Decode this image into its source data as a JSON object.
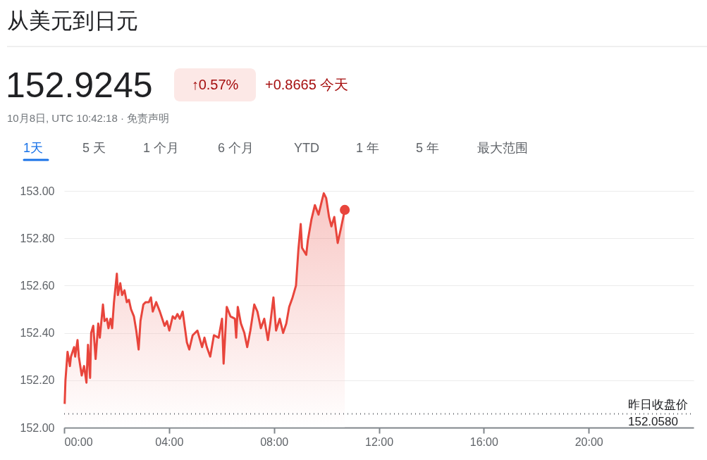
{
  "chart_data": {
    "type": "area",
    "title": "从美元到日元",
    "subtitle": "152.9245",
    "annotations": [
      "↑0.57%",
      "+0.8665 今天",
      "10月8日, UTC 10:42:18 · 免责声明",
      "1天",
      "5 天",
      "1 个月",
      "6 个月",
      "YTD",
      "1 年",
      "5 年",
      "最大范围"
    ],
    "x": [
      0.02,
      0.05,
      0.13,
      0.22,
      0.26,
      0.38,
      0.42,
      0.51,
      0.56,
      0.67,
      0.76,
      0.85,
      0.91,
      0.99,
      1.03,
      1.11,
      1.2,
      1.3,
      1.36,
      1.48,
      1.54,
      1.63,
      1.69,
      1.77,
      1.83,
      1.9,
      2.01,
      2.05,
      2.14,
      2.21,
      2.3,
      2.39,
      2.47,
      2.55,
      2.66,
      2.75,
      2.84,
      2.91,
      3.02,
      3.11,
      3.23,
      3.31,
      3.38,
      3.51,
      3.65,
      3.83,
      3.92,
      4.01,
      4.14,
      4.23,
      4.32,
      4.41,
      4.52,
      4.68,
      4.77,
      4.9,
      5.08,
      5.26,
      5.35,
      5.44,
      5.57,
      5.71,
      5.89,
      6.02,
      6.08,
      6.2,
      6.34,
      6.51,
      6.56,
      6.62,
      6.74,
      6.87,
      6.98,
      7.1,
      7.25,
      7.37,
      7.5,
      7.63,
      7.77,
      7.86,
      7.98,
      8.08,
      8.22,
      8.35,
      8.47,
      8.58,
      8.71,
      8.84,
      8.93,
      9.02,
      9.07,
      9.23,
      9.29,
      9.43,
      9.56,
      9.7,
      9.83,
      9.9,
      9.99,
      10.1,
      10.19,
      10.3,
      10.43,
      10.55,
      10.7
    ],
    "series": [
      {
        "color": "#e8453c",
        "values": [
          152.1,
          152.2,
          152.32,
          152.26,
          152.3,
          152.34,
          152.3,
          152.37,
          152.3,
          152.22,
          152.26,
          152.19,
          152.35,
          152.21,
          152.4,
          152.43,
          152.29,
          152.44,
          152.38,
          152.52,
          152.45,
          152.46,
          152.42,
          152.46,
          152.42,
          152.53,
          152.65,
          152.56,
          152.61,
          152.56,
          152.58,
          152.53,
          152.54,
          152.5,
          152.47,
          152.41,
          152.33,
          152.45,
          152.52,
          152.53,
          152.53,
          152.55,
          152.49,
          152.53,
          152.49,
          152.43,
          152.45,
          152.41,
          152.47,
          152.46,
          152.48,
          152.46,
          152.49,
          152.36,
          152.33,
          152.39,
          152.41,
          152.34,
          152.38,
          152.34,
          152.3,
          152.39,
          152.38,
          152.46,
          152.27,
          152.51,
          152.47,
          152.46,
          152.38,
          152.51,
          152.44,
          152.4,
          152.34,
          152.41,
          152.52,
          152.49,
          152.42,
          152.46,
          152.37,
          152.44,
          152.55,
          152.41,
          152.46,
          152.4,
          152.44,
          152.51,
          152.55,
          152.6,
          152.75,
          152.86,
          152.76,
          152.73,
          152.79,
          152.88,
          152.94,
          152.9,
          152.96,
          152.99,
          152.97,
          152.89,
          152.85,
          152.89,
          152.78,
          152.84,
          152.92
        ]
      }
    ],
    "xlim": [
      0,
      24
    ],
    "xticks": [
      {
        "value": 0,
        "label": "00:00"
      },
      {
        "value": 4,
        "label": "04:00"
      },
      {
        "value": 8,
        "label": "08:00"
      },
      {
        "value": 12,
        "label": "12:00"
      },
      {
        "value": 16,
        "label": "16:00"
      },
      {
        "value": 20,
        "label": "20:00"
      }
    ],
    "ylim": [
      152.0,
      153.0
    ],
    "yticks": [
      {
        "value": 152.0,
        "label": "152.00"
      },
      {
        "value": 152.2,
        "label": "152.20"
      },
      {
        "value": 152.4,
        "label": "152.40"
      },
      {
        "value": 152.6,
        "label": "152.60"
      },
      {
        "value": 152.8,
        "label": "152.80"
      },
      {
        "value": 153.0,
        "label": "153.00"
      }
    ],
    "ref_lines": [
      {
        "axis": "y",
        "value": 152.058,
        "label": "昨日收盘价 152.0580",
        "color": "#5f6368",
        "line_style": "dotted"
      }
    ],
    "grid": "y",
    "marker": "none",
    "line_style": "solid"
  }
}
